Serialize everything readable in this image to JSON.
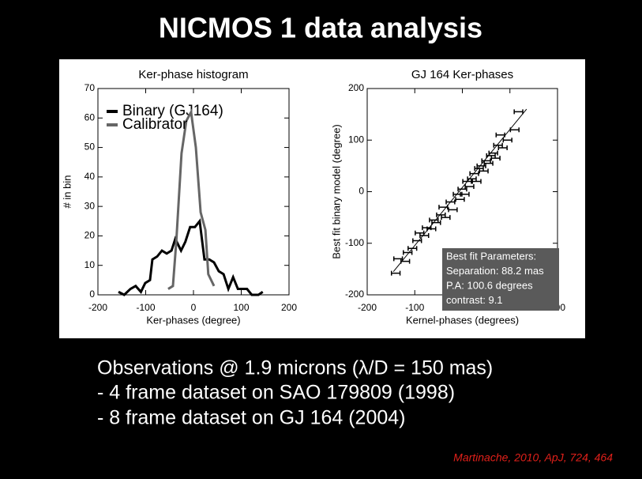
{
  "title": "NICMOS 1 data analysis",
  "bullets": [
    "Observations @ 1.9 microns (λ/D = 150 mas)",
    "- 4 frame dataset on SAO 179809 (1998)",
    "- 8 frame dataset on GJ 164 (2004)"
  ],
  "citation": "Martinache, 2010, ApJ, 724, 464",
  "chart_data": [
    {
      "type": "line",
      "title": "Ker-phase histogram",
      "x_label": "Ker-phases (degree)",
      "y_label": "# in bin",
      "xlim": [
        -200,
        200
      ],
      "xticks": [
        -200,
        -100,
        0,
        100,
        200
      ],
      "ylim": [
        0,
        70
      ],
      "yticks": [
        0,
        10,
        20,
        30,
        40,
        50,
        60,
        70
      ],
      "legend": "top-left",
      "series": [
        {
          "name": "Binary (GJ164)",
          "color": "#000000",
          "x": [
            -157,
            -145,
            -132,
            -121,
            -110,
            -101,
            -91,
            -86,
            -76,
            -66,
            -56,
            -46,
            -38,
            -26,
            -17,
            -7,
            3,
            13,
            23,
            33,
            43,
            53,
            63,
            73,
            83,
            93,
            103,
            112,
            122,
            136,
            145
          ],
          "values": [
            1,
            0,
            2,
            3,
            1,
            4,
            5,
            12,
            13,
            15,
            14,
            15,
            19,
            15,
            18,
            23,
            23,
            25,
            12,
            12,
            11,
            8,
            7,
            2,
            6,
            2,
            2,
            2,
            0,
            0,
            1
          ]
        },
        {
          "name": "Calibrator",
          "color": "#666666",
          "x": [
            -53,
            -43,
            -36,
            -25,
            -15,
            -5,
            5,
            15,
            25,
            31,
            43
          ],
          "values": [
            2,
            3,
            18,
            48,
            59,
            62,
            50,
            28,
            22,
            7,
            3
          ]
        }
      ]
    },
    {
      "type": "scatter",
      "title": "GJ 164 Ker-phases",
      "x_label": "Kernel-phases (degrees)",
      "y_label": "Best fit binary model (degree)",
      "xlim": [
        -200,
        200
      ],
      "xticks": [
        -200,
        -100,
        0,
        100,
        200
      ],
      "ylim": [
        -200,
        200
      ],
      "yticks": [
        -200,
        -100,
        0,
        100,
        200
      ],
      "color": "#000000",
      "xerr": 9,
      "x": [
        -140,
        -135,
        -120,
        -115,
        -105,
        -95,
        -90,
        -80,
        -75,
        -65,
        -60,
        -55,
        -45,
        -40,
        -35,
        -25,
        -20,
        -10,
        -5,
        0,
        5,
        10,
        15,
        20,
        25,
        30,
        35,
        40,
        45,
        50,
        55,
        60,
        65,
        70,
        75,
        80,
        85,
        95,
        110,
        118
      ],
      "y": [
        -158,
        -130,
        -135,
        -118,
        -110,
        -95,
        -80,
        -85,
        -70,
        -72,
        -55,
        -60,
        -45,
        -30,
        -50,
        -20,
        -35,
        -5,
        -15,
        5,
        -5,
        20,
        10,
        25,
        35,
        20,
        45,
        50,
        40,
        60,
        55,
        70,
        75,
        65,
        90,
        110,
        85,
        100,
        120,
        155
      ],
      "fit_line": {
        "x": [
          -145,
          135
        ],
        "y": [
          -155,
          160
        ]
      },
      "annotation": [
        "Best fit Parameters:",
        "Separation: 88.2 mas",
        "P.A:  100.6 degrees",
        "contrast: 9.1"
      ]
    }
  ]
}
